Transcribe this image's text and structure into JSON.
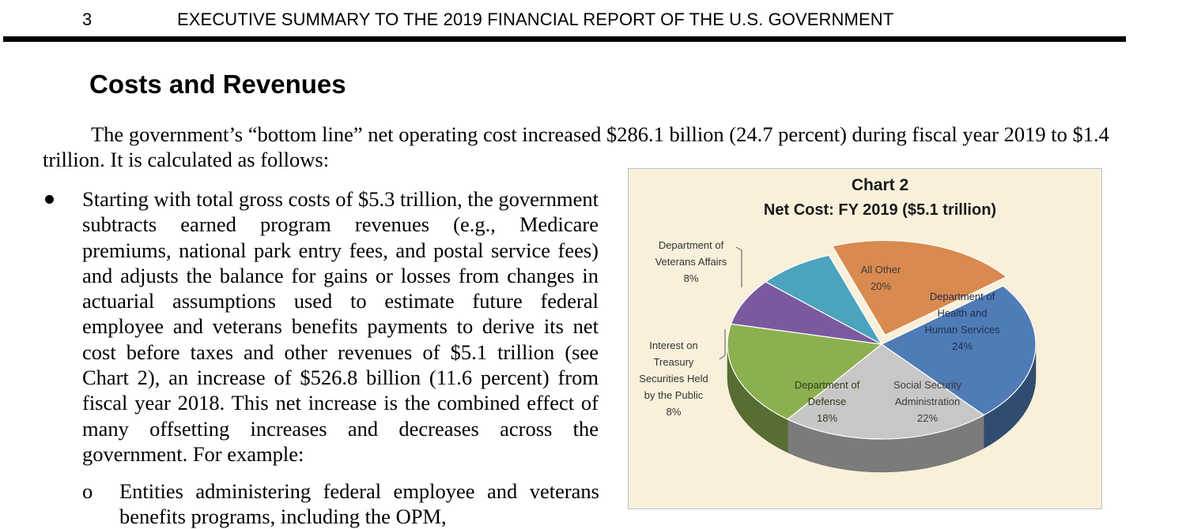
{
  "header": {
    "page_number": "3",
    "running_title": "EXECUTIVE SUMMARY TO THE 2019 FINANCIAL REPORT OF THE U.S. GOVERNMENT"
  },
  "section": {
    "title": "Costs and Revenues"
  },
  "body": {
    "intro": "The government’s “bottom line” net operating cost increased $286.1 billion (24.7 percent) during fiscal year 2019 to $1.4 trillion. It is calculated as follows:",
    "bullet": "Starting with total gross costs of $5.3 trillion, the government subtracts earned program revenues (e.g., Medicare premiums, national park entry fees, and postal service fees) and adjusts the balance for gains or losses from changes in actuarial assumptions used to estimate future federal employee and veterans benefits payments to derive its net cost before taxes and other revenues of $5.1 trillion (see Chart 2), an increase of $526.8 billion (11.6 percent) from fiscal year 2018. This net increase is the combined effect of many offsetting increases and decreases across the government. For example:",
    "subbullet_marker": "o",
    "subbullet": "Entities administering federal employee and veterans benefits programs, including the OPM,"
  },
  "chart_data": {
    "type": "pie",
    "title": "Chart 2",
    "subtitle": "Net Cost: FY 2019 ($5.1 trillion)",
    "three_d": true,
    "slices": [
      {
        "label": "All Other",
        "value": 20,
        "display": "20%",
        "color": "#d98a4e"
      },
      {
        "label": "Department of Health and Human Services",
        "value": 24,
        "display": "24%",
        "color": "#4f7bb6"
      },
      {
        "label": "Social Security Administration",
        "value": 22,
        "display": "22%",
        "color": "#c7c7c7"
      },
      {
        "label": "Department of Defense",
        "value": 18,
        "display": "18%",
        "color": "#8cb04f"
      },
      {
        "label": "Interest on Treasury Securities Held by the Public",
        "value": 8,
        "display": "8%",
        "color": "#7a5a9e"
      },
      {
        "label": "Department of Veterans Affairs",
        "value": 8,
        "display": "8%",
        "color": "#4ba3bd"
      }
    ],
    "label_lines": {
      "all_other": [
        "All Other",
        "20%"
      ],
      "hhs": [
        "Department of",
        "Health and",
        "Human Services",
        "24%"
      ],
      "ssa": [
        "Social Security",
        "Administration",
        "22%"
      ],
      "dod": [
        "Department of",
        "Defense",
        "18%"
      ],
      "interest": [
        "Interest on",
        "Treasury",
        "Securities Held",
        "by the Public",
        "8%"
      ],
      "va": [
        "Department of",
        "Veterans Affairs",
        "8%"
      ]
    }
  }
}
